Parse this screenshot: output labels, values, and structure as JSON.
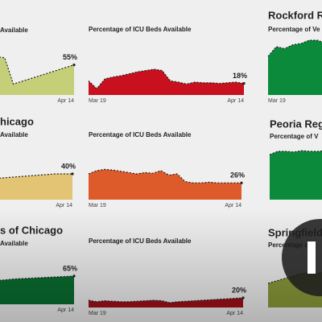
{
  "chart_data": [
    {
      "type": "area",
      "subtitle": "Available",
      "color": "#c4cf78",
      "ylim": [
        0,
        100
      ],
      "categories": [
        null,
        null,
        null,
        null,
        null,
        null,
        null,
        null,
        null,
        "Apr 14"
      ],
      "values": [
        70,
        68,
        20,
        25,
        30,
        35,
        40,
        45,
        50,
        55
      ],
      "value_labels": [
        null,
        null,
        null,
        null,
        null,
        null,
        null,
        null,
        null,
        "55%"
      ]
    },
    {
      "type": "area",
      "subtitle": "Percentage of ICU Beds Available",
      "color": "#c8101e",
      "ylim": [
        0,
        100
      ],
      "categories": [
        "Mar 19",
        null,
        null,
        null,
        null,
        null,
        null,
        null,
        null,
        null,
        null,
        null,
        null,
        null,
        null,
        null,
        null,
        null,
        null,
        "Apr 14"
      ],
      "values": [
        22,
        10,
        25,
        28,
        30,
        33,
        36,
        38,
        40,
        38,
        22,
        20,
        17,
        20,
        19,
        19,
        18,
        19,
        20,
        18
      ],
      "value_labels": [
        null,
        null,
        null,
        null,
        null,
        null,
        null,
        null,
        null,
        null,
        null,
        null,
        null,
        null,
        null,
        null,
        null,
        null,
        null,
        "18%"
      ]
    },
    {
      "type": "area",
      "title": "Rockford Re",
      "subtitle": "Percentage of Ve",
      "color": "#0b8a3c",
      "ylim": [
        0,
        100
      ],
      "categories": [
        "Mar 19",
        null,
        null,
        null,
        null,
        null,
        null,
        null,
        null
      ],
      "values": [
        60,
        75,
        72,
        78,
        80,
        85,
        85,
        80,
        82
      ]
    },
    {
      "type": "area",
      "title": "hicago",
      "subtitle": "Available",
      "color": "#e3c474",
      "ylim": [
        0,
        100
      ],
      "categories": [
        null,
        null,
        null,
        null,
        null,
        null,
        null,
        null,
        null,
        "Apr 14"
      ],
      "values": [
        33,
        34,
        35,
        36,
        37,
        38,
        39,
        40,
        40,
        40
      ],
      "value_labels": [
        null,
        null,
        null,
        null,
        null,
        null,
        null,
        null,
        null,
        "40%"
      ]
    },
    {
      "type": "area",
      "subtitle": "Percentage of ICU Beds Available",
      "color": "#dd5a2a",
      "ylim": [
        0,
        100
      ],
      "categories": [
        "Mar 19",
        null,
        null,
        null,
        null,
        null,
        null,
        null,
        null,
        null,
        null,
        null,
        null,
        null,
        null,
        null,
        null,
        null,
        null,
        "Apr 14"
      ],
      "values": [
        40,
        45,
        47,
        46,
        44,
        42,
        40,
        42,
        41,
        45,
        38,
        40,
        28,
        26,
        26,
        27,
        26,
        26,
        26,
        26
      ],
      "value_labels": [
        null,
        null,
        null,
        null,
        null,
        null,
        null,
        null,
        null,
        null,
        null,
        null,
        null,
        null,
        null,
        null,
        null,
        null,
        null,
        "26%"
      ]
    },
    {
      "type": "area",
      "title": "Peoria Regi",
      "subtitle": "Percentage of V",
      "color": "#0b8a3c",
      "ylim": [
        0,
        100
      ],
      "categories": [
        null,
        null,
        null,
        null,
        null,
        null,
        null,
        null,
        null
      ],
      "values": [
        70,
        75,
        75,
        74,
        76,
        75,
        75,
        76,
        75
      ]
    },
    {
      "type": "area",
      "title": "s of Chicago",
      "subtitle": "Available",
      "color": "#0a6e30",
      "ylim": [
        0,
        100
      ],
      "categories": [
        null,
        null,
        null,
        null,
        null,
        null,
        null,
        null,
        null,
        "Apr 14"
      ],
      "values": [
        55,
        56,
        58,
        59,
        60,
        61,
        62,
        63,
        64,
        65
      ],
      "value_labels": [
        null,
        null,
        null,
        null,
        null,
        null,
        null,
        null,
        null,
        "65%"
      ]
    },
    {
      "type": "area",
      "subtitle": "Percentage of ICU Beds Available",
      "color": "#a0101a",
      "ylim": [
        0,
        100
      ],
      "categories": [
        "Mar 19",
        null,
        null,
        null,
        null,
        null,
        null,
        null,
        null,
        null,
        null,
        null,
        null,
        null,
        null,
        null,
        null,
        null,
        null,
        "Apr 14"
      ],
      "values": [
        15,
        12,
        14,
        13,
        12,
        12,
        13,
        14,
        15,
        14,
        10,
        12,
        13,
        14,
        15,
        16,
        17,
        18,
        19,
        20
      ],
      "value_labels": [
        null,
        null,
        null,
        null,
        null,
        null,
        null,
        null,
        null,
        null,
        null,
        null,
        null,
        null,
        null,
        null,
        null,
        null,
        null,
        "20%"
      ]
    },
    {
      "type": "area",
      "title": "Springfield",
      "subtitle": "Percentage of",
      "color": "#8a9a3a",
      "ylim": [
        0,
        100
      ],
      "categories": [
        null,
        null,
        null,
        null,
        null,
        null,
        null,
        null,
        null
      ],
      "values": [
        50,
        55,
        60,
        65,
        70,
        72,
        70,
        75,
        78
      ]
    }
  ]
}
